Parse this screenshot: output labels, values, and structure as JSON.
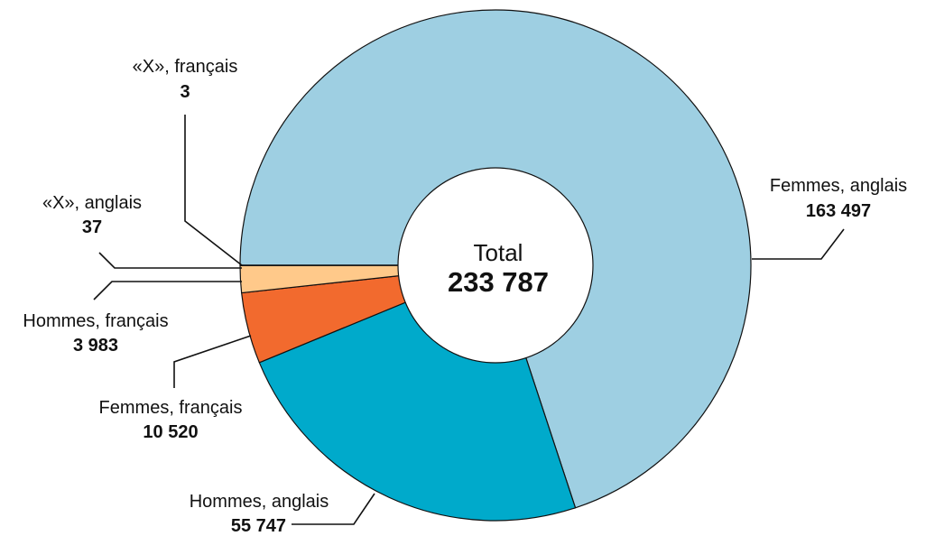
{
  "chart_data": {
    "type": "pie",
    "variant": "donut",
    "center": {
      "title": "Total",
      "value_label": "233 787",
      "value": 233787
    },
    "slices": [
      {
        "name": "Femmes, anglais",
        "value": 163497,
        "value_label": "163 497",
        "color": "#9ecfe2"
      },
      {
        "name": "Hommes, anglais",
        "value": 55747,
        "value_label": "55 747",
        "color": "#00aacb"
      },
      {
        "name": "Femmes, français",
        "value": 10520,
        "value_label": "10 520",
        "color": "#f26a2e"
      },
      {
        "name": "Hommes, français",
        "value": 3983,
        "value_label": "3 983",
        "color": "#ffc98a"
      },
      {
        "name": "«X», anglais",
        "value": 37,
        "value_label": "37",
        "color": "#1a8a99"
      },
      {
        "name": "«X», français",
        "value": 3,
        "value_label": "3",
        "color": "#2b6f7a"
      }
    ],
    "legend": "none"
  }
}
